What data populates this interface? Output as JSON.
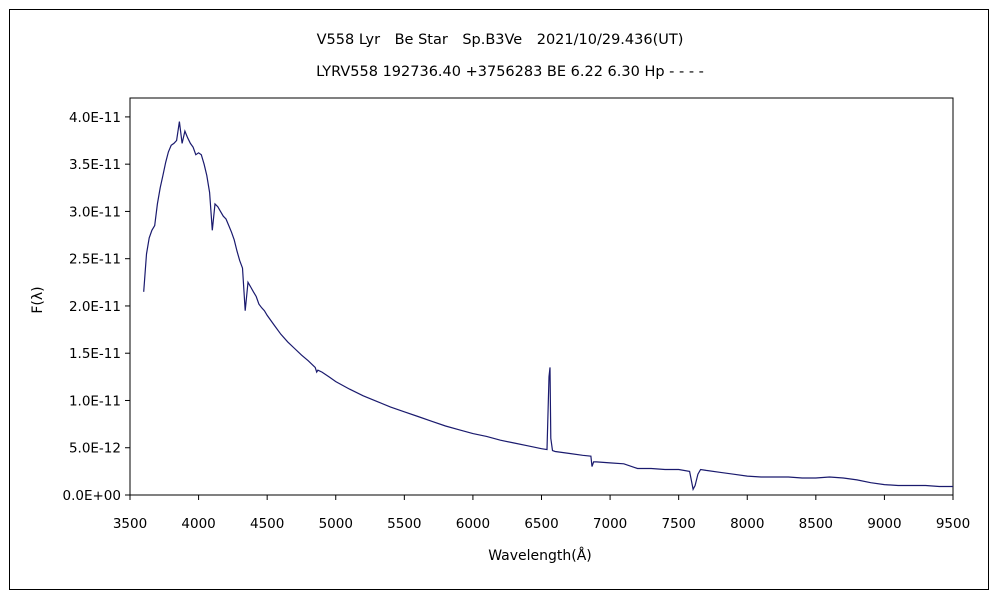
{
  "chart_data": {
    "type": "line",
    "title": "V558 Lyr　Be Star　Sp.B3Ve　2021/10/29.436(UT)",
    "subtitle": "LYRV558 192736.40 +3756283 BE 6.22 6.30 Hp - - - -",
    "xlabel": "Wavelength(Å)",
    "ylabel": "F(λ)",
    "xlim": [
      3500,
      9500
    ],
    "ylim": [
      0,
      4.2e-11
    ],
    "x_ticks": [
      3500,
      4000,
      4500,
      5000,
      5500,
      6000,
      6500,
      7000,
      7500,
      8000,
      8500,
      9000,
      9500
    ],
    "x_tick_labels": [
      "3500",
      "4000",
      "4500",
      "5000",
      "5500",
      "6000",
      "6500",
      "7000",
      "7500",
      "8000",
      "8500",
      "9000",
      "9500"
    ],
    "y_ticks": [
      0,
      5e-12,
      1e-11,
      1.5e-11,
      2e-11,
      2.5e-11,
      3e-11,
      3.5e-11,
      4e-11
    ],
    "y_tick_labels": [
      "0.0E+00",
      "5.0E-12",
      "1.0E-11",
      "1.5E-11",
      "2.0E-11",
      "2.5E-11",
      "3.0E-11",
      "3.5E-11",
      "4.0E-11"
    ],
    "grid": false,
    "legend": "none",
    "line_color": "#1a1a6e",
    "series": [
      {
        "x": [
          3600,
          3620,
          3640,
          3660,
          3680,
          3700,
          3720,
          3740,
          3760,
          3780,
          3800,
          3820,
          3840,
          3860,
          3880,
          3900,
          3920,
          3940,
          3960,
          3980,
          4000,
          4020,
          4040,
          4060,
          4080,
          4100,
          4120,
          4140,
          4160,
          4180,
          4200,
          4220,
          4240,
          4260,
          4280,
          4300,
          4320,
          4340,
          4360,
          4380,
          4400,
          4420,
          4440,
          4460,
          4480,
          4500,
          4550,
          4600,
          4650,
          4700,
          4750,
          4800,
          4850,
          4861,
          4870,
          4900,
          4950,
          5000,
          5100,
          5200,
          5300,
          5400,
          5500,
          5600,
          5700,
          5800,
          5900,
          6000,
          6100,
          6200,
          6300,
          6400,
          6500,
          6540,
          6555,
          6562,
          6568,
          6580,
          6600,
          6700,
          6800,
          6860,
          6868,
          6880,
          6900,
          7000,
          7100,
          7200,
          7300,
          7400,
          7500,
          7580,
          7605,
          7620,
          7640,
          7660,
          7700,
          7800,
          7900,
          8000,
          8100,
          8200,
          8300,
          8400,
          8500,
          8600,
          8700,
          8800,
          8900,
          9000,
          9100,
          9200,
          9300,
          9400,
          9500
        ],
        "y": [
          2.15e-11,
          2.55e-11,
          2.72e-11,
          2.8e-11,
          2.85e-11,
          3.08e-11,
          3.25e-11,
          3.38e-11,
          3.52e-11,
          3.63e-11,
          3.7e-11,
          3.72e-11,
          3.75e-11,
          3.95e-11,
          3.72e-11,
          3.85e-11,
          3.78e-11,
          3.72e-11,
          3.68e-11,
          3.6e-11,
          3.62e-11,
          3.6e-11,
          3.5e-11,
          3.38e-11,
          3.2e-11,
          2.8e-11,
          3.08e-11,
          3.05e-11,
          3e-11,
          2.95e-11,
          2.92e-11,
          2.85e-11,
          2.78e-11,
          2.7e-11,
          2.58e-11,
          2.48e-11,
          2.4e-11,
          1.95e-11,
          2.25e-11,
          2.2e-11,
          2.15e-11,
          2.1e-11,
          2.02e-11,
          1.98e-11,
          1.95e-11,
          1.9e-11,
          1.8e-11,
          1.7e-11,
          1.62e-11,
          1.55e-11,
          1.48e-11,
          1.42e-11,
          1.35e-11,
          1.3e-11,
          1.32e-11,
          1.3e-11,
          1.25e-11,
          1.2e-11,
          1.12e-11,
          1.05e-11,
          9.9e-12,
          9.3e-12,
          8.8e-12,
          8.3e-12,
          7.8e-12,
          7.3e-12,
          6.9e-12,
          6.5e-12,
          6.2e-12,
          5.8e-12,
          5.5e-12,
          5.2e-12,
          4.9e-12,
          4.8e-12,
          1.25e-11,
          1.35e-11,
          6e-12,
          4.7e-12,
          4.6e-12,
          4.4e-12,
          4.2e-12,
          4.1e-12,
          3e-12,
          3.5e-12,
          3.5e-12,
          3.4e-12,
          3.3e-12,
          2.8e-12,
          2.8e-12,
          2.7e-12,
          2.7e-12,
          2.5e-12,
          6e-13,
          1e-12,
          2.2e-12,
          2.7e-12,
          2.6e-12,
          2.4e-12,
          2.2e-12,
          2e-12,
          1.9e-12,
          1.9e-12,
          1.9e-12,
          1.8e-12,
          1.8e-12,
          1.9e-12,
          1.8e-12,
          1.6e-12,
          1.3e-12,
          1.1e-12,
          1e-12,
          1e-12,
          1e-12,
          9e-13,
          9e-13
        ]
      }
    ]
  }
}
